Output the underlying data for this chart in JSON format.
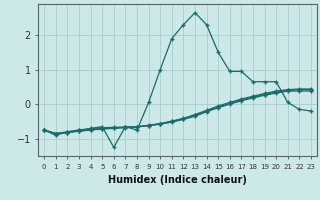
{
  "xlabel": "Humidex (Indice chaleur)",
  "ylabel": "",
  "bg_color": "#cce8e8",
  "grid_color": "#aacccc",
  "line_color": "#1a6b6b",
  "xlim": [
    -0.5,
    23.5
  ],
  "ylim": [
    -1.5,
    2.9
  ],
  "yticks": [
    -1,
    0,
    1,
    2
  ],
  "x": [
    0,
    1,
    2,
    3,
    4,
    5,
    6,
    7,
    8,
    9,
    10,
    11,
    12,
    13,
    14,
    15,
    16,
    17,
    18,
    19,
    20,
    21,
    22,
    23
  ],
  "line1": [
    -0.75,
    -0.9,
    -0.8,
    -0.75,
    -0.7,
    -0.65,
    -1.25,
    -0.65,
    -0.75,
    0.05,
    1.0,
    1.9,
    2.3,
    2.65,
    2.3,
    1.5,
    0.95,
    0.95,
    0.65,
    0.65,
    0.65,
    0.05,
    -0.15,
    -0.2
  ],
  "line2": [
    -0.75,
    -0.85,
    -0.8,
    -0.75,
    -0.72,
    -0.68,
    -0.67,
    -0.66,
    -0.65,
    -0.62,
    -0.58,
    -0.52,
    -0.44,
    -0.35,
    -0.22,
    -0.1,
    0.0,
    0.1,
    0.18,
    0.26,
    0.32,
    0.38,
    0.38,
    0.38
  ],
  "line3": [
    -0.75,
    -0.85,
    -0.82,
    -0.78,
    -0.75,
    -0.72,
    -0.7,
    -0.68,
    -0.66,
    -0.62,
    -0.57,
    -0.5,
    -0.42,
    -0.32,
    -0.2,
    -0.08,
    0.02,
    0.12,
    0.2,
    0.28,
    0.35,
    0.4,
    0.42,
    0.42
  ],
  "line4": [
    -0.75,
    -0.85,
    -0.82,
    -0.78,
    -0.74,
    -0.71,
    -0.69,
    -0.67,
    -0.65,
    -0.61,
    -0.56,
    -0.49,
    -0.41,
    -0.3,
    -0.18,
    -0.05,
    0.05,
    0.15,
    0.23,
    0.31,
    0.38,
    0.42,
    0.44,
    0.44
  ]
}
